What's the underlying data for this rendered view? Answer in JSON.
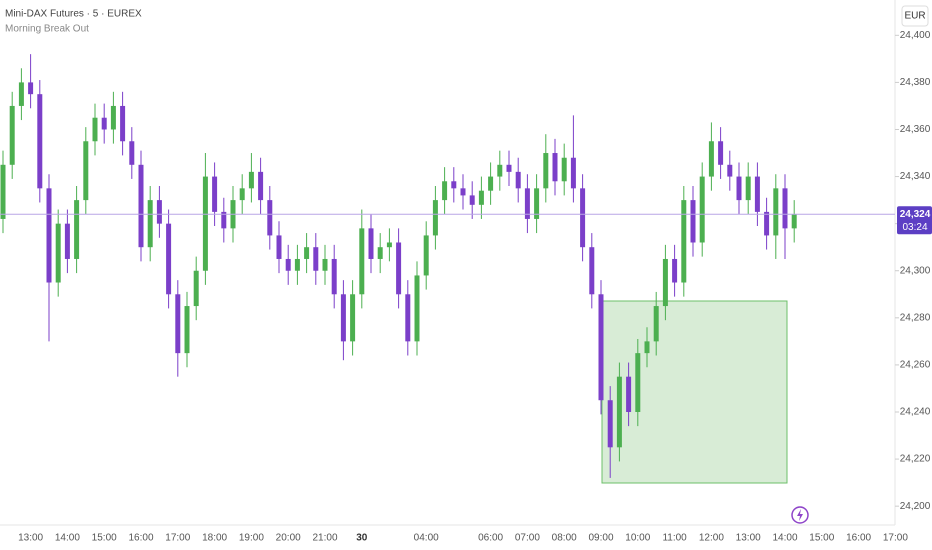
{
  "chart_data": {
    "type": "candlestick",
    "title": "Mini-DAX Futures · 5 · EUREX",
    "subtitle": "Morning Break Out",
    "currency": "EUR",
    "categories": [
      null,
      null,
      null,
      "13:00",
      null,
      null,
      null,
      "14:00",
      null,
      null,
      null,
      "15:00",
      null,
      null,
      null,
      "16:00",
      null,
      null,
      null,
      "17:00",
      null,
      null,
      null,
      "18:00",
      null,
      null,
      null,
      "19:00",
      null,
      null,
      null,
      "20:00",
      null,
      null,
      null,
      "21:00",
      null,
      null,
      null,
      "30",
      null,
      null,
      null,
      null,
      null,
      null,
      "04:00",
      null,
      null,
      null,
      null,
      null,
      null,
      "06:00",
      null,
      null,
      null,
      "07:00",
      null,
      null,
      null,
      "08:00",
      null,
      null,
      null,
      "09:00",
      null,
      null,
      null,
      "10:00",
      null,
      null,
      null,
      "11:00",
      null,
      null,
      null,
      "12:00",
      null,
      null,
      null,
      "13:00",
      null,
      null,
      null,
      "14:00",
      null,
      null,
      null,
      "15:00",
      null,
      null,
      null,
      "16:00",
      null,
      null,
      null,
      "17:00"
    ],
    "open": [
      24322,
      24345,
      24370,
      24380,
      24375,
      24335,
      24295,
      24320,
      24305,
      24330,
      24355,
      24365,
      24360,
      24370,
      24355,
      24345,
      24310,
      24330,
      24320,
      24290,
      24265,
      24285,
      24300,
      24340,
      24325,
      24318,
      24330,
      24335,
      24342,
      24330,
      24315,
      24305,
      24300,
      24305,
      24310,
      24300,
      24305,
      24290,
      24270,
      24290,
      24318,
      24305,
      24310,
      24312,
      24290,
      24270,
      24298,
      24315,
      24330,
      24338,
      24335,
      24332,
      24328,
      24334,
      24340,
      24345,
      24342,
      24335,
      24322,
      24335,
      24350,
      24338,
      24348,
      24335,
      24310,
      24290,
      24245,
      24225,
      24255,
      24240,
      24265,
      24270,
      24285,
      24305,
      24295,
      24330,
      24312,
      24340,
      24355,
      24345,
      24340,
      24330,
      24340,
      24325,
      24315,
      24335,
      24318,
      null,
      null,
      null,
      null,
      null,
      null,
      null,
      null,
      null,
      null,
      null
    ],
    "high": [
      24351,
      24376,
      24386,
      24392,
      24381,
      24341,
      24326,
      24326,
      24336,
      24361,
      24371,
      24371,
      24376,
      24376,
      24361,
      24351,
      24336,
      24336,
      24326,
      24296,
      24291,
      24306,
      24350,
      24346,
      24331,
      24336,
      24341,
      24350,
      24348,
      24336,
      24321,
      24311,
      24311,
      24316,
      24316,
      24311,
      24311,
      24296,
      24296,
      24326,
      24324,
      24316,
      24318,
      24318,
      24296,
      24304,
      24321,
      24336,
      24344,
      24344,
      24341,
      24338,
      24340,
      24346,
      24351,
      24351,
      24348,
      24341,
      24341,
      24358,
      24356,
      24354,
      24366,
      24341,
      24316,
      24296,
      24251,
      24261,
      24261,
      24271,
      24276,
      24291,
      24311,
      24311,
      24336,
      24336,
      24346,
      24363,
      24361,
      24351,
      24346,
      24346,
      24346,
      24331,
      24341,
      24341,
      24330,
      null,
      null,
      null,
      null,
      null,
      null,
      null,
      null,
      null,
      null,
      null
    ],
    "low": [
      24316,
      24339,
      24364,
      24369,
      24329,
      24270,
      24289,
      24299,
      24299,
      24324,
      24349,
      24354,
      24354,
      24349,
      24339,
      24304,
      24304,
      24314,
      24284,
      24255,
      24259,
      24279,
      24294,
      24319,
      24312,
      24312,
      24324,
      24329,
      24324,
      24309,
      24299,
      24294,
      24294,
      24299,
      24294,
      24294,
      24284,
      24262,
      24264,
      24284,
      24299,
      24299,
      24304,
      24284,
      24264,
      24264,
      24292,
      24309,
      24324,
      24329,
      24326,
      24322,
      24322,
      24328,
      24334,
      24336,
      24329,
      24316,
      24316,
      24329,
      24332,
      24332,
      24329,
      24304,
      24284,
      24239,
      24212,
      24219,
      24234,
      24234,
      24259,
      24264,
      24279,
      24289,
      24289,
      24306,
      24306,
      24334,
      24339,
      24334,
      24324,
      24324,
      24319,
      24309,
      24305,
      24305,
      24312,
      null,
      null,
      null,
      null,
      null,
      null,
      null,
      null,
      null,
      null,
      null
    ],
    "close": [
      24345,
      24370,
      24380,
      24375,
      24335,
      24295,
      24320,
      24305,
      24330,
      24355,
      24365,
      24360,
      24370,
      24355,
      24345,
      24310,
      24330,
      24320,
      24290,
      24265,
      24285,
      24300,
      24340,
      24325,
      24318,
      24330,
      24335,
      24342,
      24330,
      24315,
      24305,
      24300,
      24305,
      24310,
      24300,
      24305,
      24290,
      24270,
      24290,
      24318,
      24305,
      24310,
      24312,
      24290,
      24270,
      24298,
      24315,
      24330,
      24338,
      24335,
      24332,
      24328,
      24334,
      24340,
      24345,
      24342,
      24335,
      24322,
      24335,
      24350,
      24338,
      24348,
      24335,
      24310,
      24290,
      24245,
      24225,
      24255,
      24240,
      24265,
      24270,
      24285,
      24305,
      24295,
      24330,
      24312,
      24340,
      24355,
      24345,
      24340,
      24330,
      24340,
      24325,
      24315,
      24335,
      24318,
      24324,
      null,
      null,
      null,
      null,
      null,
      null,
      null,
      null,
      null,
      null,
      null
    ],
    "colors": {
      "up": "#4caf50",
      "down": "#7b3fc9"
    },
    "last_price": {
      "value": 24324,
      "label": "24,324"
    },
    "countdown": "03:24",
    "ylim": [
      24192,
      24415
    ],
    "yticks": [
      {
        "value": 24200,
        "label": "24,200"
      },
      {
        "value": 24220,
        "label": "24,220"
      },
      {
        "value": 24240,
        "label": "24,240"
      },
      {
        "value": 24260,
        "label": "24,260"
      },
      {
        "value": 24280,
        "label": "24,280"
      },
      {
        "value": 24300,
        "label": "24,300"
      },
      {
        "value": 24320,
        "label": "24,320"
      },
      {
        "value": 24340,
        "label": "24,340"
      },
      {
        "value": 24360,
        "label": "24,360"
      },
      {
        "value": 24380,
        "label": "24,380"
      },
      {
        "value": 24400,
        "label": "24,400"
      }
    ]
  }
}
